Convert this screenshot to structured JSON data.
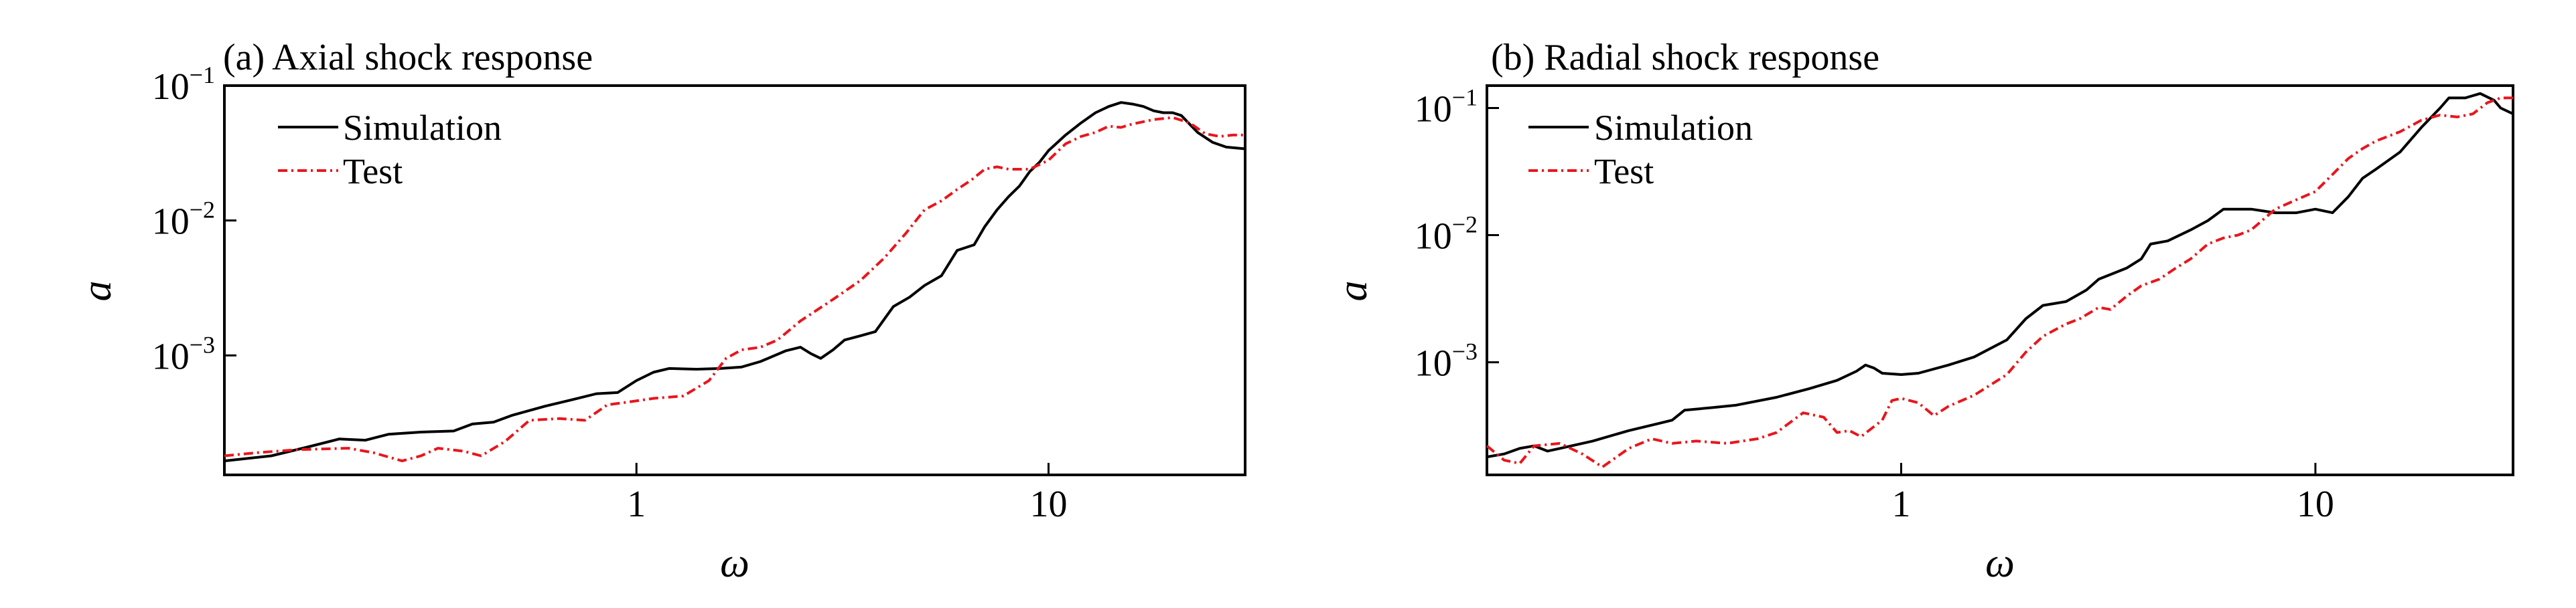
{
  "chart_data": [
    {
      "type": "line",
      "title": "(a) Axial shock response",
      "xlabel": "ω",
      "ylabel": "a",
      "x_scale": "log",
      "y_scale": "log",
      "xlim": [
        0.1,
        30
      ],
      "ylim": [
        0.00013,
        0.1
      ],
      "x_ticks": [
        {
          "value": 1,
          "label": "1"
        },
        {
          "value": 10,
          "label": "10"
        }
      ],
      "y_ticks": [
        {
          "value": 0.001,
          "base": "10",
          "exp": "−3"
        },
        {
          "value": 0.01,
          "base": "10",
          "exp": "−2"
        },
        {
          "value": 0.1,
          "base": "10",
          "exp": "−1"
        }
      ],
      "legend": "top-left",
      "grid": false,
      "series": [
        {
          "name": "Simulation",
          "color": "#000000",
          "style": "solid",
          "points": [
            [
              0.1,
              0.000165
            ],
            [
              0.13,
              0.00018
            ],
            [
              0.16,
              0.00021
            ],
            [
              0.19,
              0.00024
            ],
            [
              0.22,
              0.000235
            ],
            [
              0.25,
              0.00026
            ],
            [
              0.3,
              0.00027
            ],
            [
              0.36,
              0.000275
            ],
            [
              0.4,
              0.00031
            ],
            [
              0.45,
              0.00032
            ],
            [
              0.5,
              0.00036
            ],
            [
              0.6,
              0.00042
            ],
            [
              0.7,
              0.00047
            ],
            [
              0.8,
              0.00052
            ],
            [
              0.9,
              0.00053
            ],
            [
              1.0,
              0.00065
            ],
            [
              1.1,
              0.00075
            ],
            [
              1.2,
              0.0008
            ],
            [
              1.4,
              0.00079
            ],
            [
              1.6,
              0.0008
            ],
            [
              1.8,
              0.00082
            ],
            [
              2.0,
              0.0009
            ],
            [
              2.3,
              0.00108
            ],
            [
              2.5,
              0.00115
            ],
            [
              2.65,
              0.00103
            ],
            [
              2.8,
              0.00095
            ],
            [
              3.0,
              0.0011
            ],
            [
              3.2,
              0.0013
            ],
            [
              3.5,
              0.0014
            ],
            [
              3.8,
              0.0015
            ],
            [
              4.2,
              0.0023
            ],
            [
              4.6,
              0.0027
            ],
            [
              5.0,
              0.0033
            ],
            [
              5.5,
              0.0039
            ],
            [
              6.0,
              0.006
            ],
            [
              6.6,
              0.0066
            ],
            [
              7.0,
              0.009
            ],
            [
              7.5,
              0.012
            ],
            [
              8.0,
              0.015
            ],
            [
              8.5,
              0.018
            ],
            [
              9.0,
              0.023
            ],
            [
              9.5,
              0.027
            ],
            [
              10.0,
              0.033
            ],
            [
              11.0,
              0.043
            ],
            [
              12.0,
              0.053
            ],
            [
              13.0,
              0.063
            ],
            [
              14.0,
              0.07
            ],
            [
              15.0,
              0.075
            ],
            [
              16.0,
              0.073
            ],
            [
              17.0,
              0.07
            ],
            [
              18.0,
              0.065
            ],
            [
              19.0,
              0.063
            ],
            [
              20.0,
              0.063
            ],
            [
              21.0,
              0.06
            ],
            [
              23.0,
              0.045
            ],
            [
              25.0,
              0.038
            ],
            [
              27.0,
              0.035
            ],
            [
              30.0,
              0.034
            ]
          ]
        },
        {
          "name": "Test",
          "color": "#e8161d",
          "style": "dash-dot",
          "points": [
            [
              0.1,
              0.00018
            ],
            [
              0.12,
              0.00019
            ],
            [
              0.15,
              0.0002
            ],
            [
              0.2,
              0.000205
            ],
            [
              0.23,
              0.00019
            ],
            [
              0.27,
              0.000165
            ],
            [
              0.3,
              0.00018
            ],
            [
              0.33,
              0.000205
            ],
            [
              0.38,
              0.000195
            ],
            [
              0.42,
              0.00018
            ],
            [
              0.48,
              0.00023
            ],
            [
              0.55,
              0.00033
            ],
            [
              0.65,
              0.00034
            ],
            [
              0.75,
              0.00033
            ],
            [
              0.85,
              0.00043
            ],
            [
              0.95,
              0.00045
            ],
            [
              1.1,
              0.00048
            ],
            [
              1.3,
              0.0005
            ],
            [
              1.5,
              0.00065
            ],
            [
              1.65,
              0.00095
            ],
            [
              1.8,
              0.0011
            ],
            [
              2.0,
              0.00115
            ],
            [
              2.2,
              0.0013
            ],
            [
              2.5,
              0.0018
            ],
            [
              3.0,
              0.0026
            ],
            [
              3.5,
              0.0036
            ],
            [
              4.0,
              0.0053
            ],
            [
              4.5,
              0.008
            ],
            [
              5.0,
              0.012
            ],
            [
              5.5,
              0.014
            ],
            [
              6.0,
              0.017
            ],
            [
              6.5,
              0.02
            ],
            [
              7.0,
              0.024
            ],
            [
              7.5,
              0.025
            ],
            [
              8.0,
              0.024
            ],
            [
              9.0,
              0.024
            ],
            [
              10.0,
              0.028
            ],
            [
              11.0,
              0.037
            ],
            [
              12.0,
              0.042
            ],
            [
              13.0,
              0.045
            ],
            [
              14.0,
              0.05
            ],
            [
              15.0,
              0.049
            ],
            [
              16.0,
              0.052
            ],
            [
              18.0,
              0.056
            ],
            [
              20.0,
              0.058
            ],
            [
              22.0,
              0.053
            ],
            [
              24.0,
              0.044
            ],
            [
              26.0,
              0.042
            ],
            [
              28.0,
              0.043
            ],
            [
              30.0,
              0.043
            ]
          ]
        }
      ]
    },
    {
      "type": "line",
      "title": "(b) Radial shock response",
      "xlabel": "ω",
      "ylabel": "a",
      "x_scale": "log",
      "y_scale": "log",
      "xlim": [
        0.1,
        30
      ],
      "ylim": [
        0.00013,
        0.15
      ],
      "x_ticks": [
        {
          "value": 1,
          "label": "1"
        },
        {
          "value": 10,
          "label": "10"
        }
      ],
      "y_ticks": [
        {
          "value": 0.001,
          "base": "10",
          "exp": "−3"
        },
        {
          "value": 0.01,
          "base": "10",
          "exp": "−2"
        },
        {
          "value": 0.1,
          "base": "10",
          "exp": "−1"
        }
      ],
      "legend": "top-left",
      "grid": false,
      "series": [
        {
          "name": "Simulation",
          "color": "#000000",
          "style": "solid",
          "points": [
            [
              0.1,
              0.00018
            ],
            [
              0.11,
              0.00019
            ],
            [
              0.12,
              0.00021
            ],
            [
              0.13,
              0.00022
            ],
            [
              0.14,
              0.0002
            ],
            [
              0.15,
              0.00021
            ],
            [
              0.18,
              0.00024
            ],
            [
              0.22,
              0.00029
            ],
            [
              0.26,
              0.00033
            ],
            [
              0.28,
              0.00035
            ],
            [
              0.3,
              0.00042
            ],
            [
              0.35,
              0.00044
            ],
            [
              0.4,
              0.00046
            ],
            [
              0.5,
              0.00053
            ],
            [
              0.6,
              0.00062
            ],
            [
              0.7,
              0.00072
            ],
            [
              0.78,
              0.00085
            ],
            [
              0.82,
              0.00095
            ],
            [
              0.86,
              0.0009
            ],
            [
              0.9,
              0.00082
            ],
            [
              1.0,
              0.0008
            ],
            [
              1.1,
              0.00082
            ],
            [
              1.3,
              0.00095
            ],
            [
              1.5,
              0.0011
            ],
            [
              1.8,
              0.0015
            ],
            [
              2.0,
              0.0022
            ],
            [
              2.2,
              0.0028
            ],
            [
              2.5,
              0.003
            ],
            [
              2.8,
              0.0037
            ],
            [
              3.0,
              0.0045
            ],
            [
              3.5,
              0.0055
            ],
            [
              3.8,
              0.0065
            ],
            [
              4.0,
              0.0085
            ],
            [
              4.4,
              0.009
            ],
            [
              5.0,
              0.011
            ],
            [
              5.5,
              0.013
            ],
            [
              6.0,
              0.016
            ],
            [
              7.0,
              0.016
            ],
            [
              8.0,
              0.015
            ],
            [
              9.0,
              0.015
            ],
            [
              10.0,
              0.016
            ],
            [
              11.0,
              0.015
            ],
            [
              12.0,
              0.02
            ],
            [
              13.0,
              0.028
            ],
            [
              14.0,
              0.033
            ],
            [
              16.0,
              0.045
            ],
            [
              18.0,
              0.07
            ],
            [
              20.0,
              0.1
            ],
            [
              21.0,
              0.12
            ],
            [
              23.0,
              0.12
            ],
            [
              25.0,
              0.13
            ],
            [
              27.0,
              0.115
            ],
            [
              28.0,
              0.1
            ],
            [
              30.0,
              0.09
            ]
          ]
        },
        {
          "name": "Test",
          "color": "#e8161d",
          "style": "dash-dot",
          "points": [
            [
              0.1,
              0.00022
            ],
            [
              0.11,
              0.00017
            ],
            [
              0.12,
              0.00016
            ],
            [
              0.13,
              0.00022
            ],
            [
              0.15,
              0.00023
            ],
            [
              0.17,
              0.00019
            ],
            [
              0.19,
              0.00015
            ],
            [
              0.22,
              0.00021
            ],
            [
              0.25,
              0.00025
            ],
            [
              0.28,
              0.00023
            ],
            [
              0.32,
              0.00024
            ],
            [
              0.38,
              0.00023
            ],
            [
              0.45,
              0.00025
            ],
            [
              0.5,
              0.00028
            ],
            [
              0.58,
              0.0004
            ],
            [
              0.65,
              0.00037
            ],
            [
              0.7,
              0.00028
            ],
            [
              0.75,
              0.00029
            ],
            [
              0.8,
              0.00026
            ],
            [
              0.9,
              0.00035
            ],
            [
              0.95,
              0.0005
            ],
            [
              1.0,
              0.00052
            ],
            [
              1.1,
              0.00048
            ],
            [
              1.2,
              0.00038
            ],
            [
              1.3,
              0.00045
            ],
            [
              1.5,
              0.00055
            ],
            [
              1.8,
              0.0008
            ],
            [
              2.0,
              0.0012
            ],
            [
              2.2,
              0.0016
            ],
            [
              2.5,
              0.002
            ],
            [
              2.7,
              0.0022
            ],
            [
              3.0,
              0.0027
            ],
            [
              3.2,
              0.0026
            ],
            [
              3.5,
              0.0033
            ],
            [
              3.8,
              0.004
            ],
            [
              4.2,
              0.0045
            ],
            [
              4.6,
              0.0055
            ],
            [
              5.0,
              0.0065
            ],
            [
              5.5,
              0.0085
            ],
            [
              6.0,
              0.0095
            ],
            [
              6.5,
              0.01
            ],
            [
              7.0,
              0.011
            ],
            [
              8.0,
              0.016
            ],
            [
              9.0,
              0.019
            ],
            [
              10.0,
              0.022
            ],
            [
              11.0,
              0.03
            ],
            [
              12.0,
              0.04
            ],
            [
              13.0,
              0.048
            ],
            [
              14.0,
              0.055
            ],
            [
              16.0,
              0.065
            ],
            [
              18.0,
              0.08
            ],
            [
              20.0,
              0.088
            ],
            [
              22.0,
              0.085
            ],
            [
              24.0,
              0.09
            ],
            [
              26.0,
              0.11
            ],
            [
              28.0,
              0.12
            ],
            [
              30.0,
              0.12
            ]
          ]
        }
      ]
    }
  ]
}
